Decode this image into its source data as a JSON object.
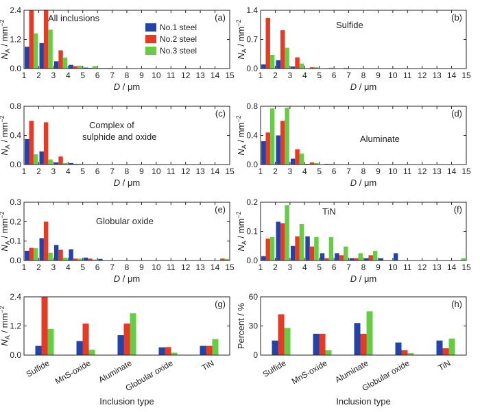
{
  "colors": {
    "No.1 steel": "#2343a8",
    "No.2 steel": "#e63a24",
    "No.3 steel": "#66cc44"
  },
  "legend": [
    "No.1 steel",
    "No.2 steel",
    "No.3 steel"
  ],
  "chart_data": [
    {
      "type": "bar",
      "panel": "(a)",
      "annotation": "All inclusions",
      "xlabel": "D / μm",
      "ylabel": "NA / mm⁻²",
      "xlim": [
        1,
        15
      ],
      "ylim": [
        0,
        2.4
      ],
      "xticks": [
        1,
        2,
        3,
        4,
        5,
        6,
        7,
        8,
        9,
        10,
        11,
        12,
        13,
        14,
        15
      ],
      "yticks": [
        0,
        1.2,
        2.4
      ],
      "x": [
        1.5,
        2.5,
        3.5,
        4.5,
        5.5,
        6.5
      ],
      "series": [
        {
          "name": "No.1 steel",
          "values": [
            0.9,
            1.05,
            0.3,
            0.15,
            0.04,
            0.02
          ]
        },
        {
          "name": "No.2 steel",
          "values": [
            2.4,
            2.42,
            0.75,
            0.1,
            0.03,
            0.02
          ]
        },
        {
          "name": "No.3 steel",
          "values": [
            1.45,
            1.6,
            0.45,
            0.12,
            0.1,
            0.03
          ]
        }
      ]
    },
    {
      "type": "bar",
      "panel": "(b)",
      "annotation": "Sulfide",
      "xlabel": "D / μm",
      "ylabel": "NA / mm⁻²",
      "xlim": [
        1,
        15
      ],
      "ylim": [
        0,
        1.4
      ],
      "xticks": [
        1,
        2,
        3,
        4,
        5,
        6,
        7,
        8,
        9,
        10,
        11,
        12,
        13,
        14,
        15
      ],
      "yticks": [
        0,
        0.7,
        1.4
      ],
      "x": [
        1.5,
        2.5,
        3.5,
        4.5,
        5.5,
        6.5
      ],
      "series": [
        {
          "name": "No.1 steel",
          "values": [
            0.1,
            0.2,
            0.05,
            0.01,
            0.0,
            0.0
          ]
        },
        {
          "name": "No.2 steel",
          "values": [
            1.22,
            0.92,
            0.27,
            0.03,
            0.01,
            0.0
          ]
        },
        {
          "name": "No.3 steel",
          "values": [
            0.33,
            0.5,
            0.12,
            0.03,
            0.02,
            0.02
          ]
        }
      ]
    },
    {
      "type": "bar",
      "panel": "(c)",
      "annotation": "Complex of sulphide and oxide",
      "xlabel": "D / μm",
      "ylabel": "NA / mm⁻²",
      "xlim": [
        1,
        15
      ],
      "ylim": [
        0,
        0.8
      ],
      "xticks": [
        1,
        2,
        3,
        4,
        5,
        6,
        7,
        8,
        9,
        10,
        11,
        12,
        13,
        14,
        15
      ],
      "yticks": [
        0,
        0.4,
        0.8
      ],
      "x": [
        1.5,
        2.5,
        3.5,
        4.5
      ],
      "series": [
        {
          "name": "No.1 steel",
          "values": [
            0.35,
            0.18,
            0.03,
            0.02
          ]
        },
        {
          "name": "No.2 steel",
          "values": [
            0.6,
            0.58,
            0.11,
            0.01
          ]
        },
        {
          "name": "No.3 steel",
          "values": [
            0.14,
            0.07,
            0.02,
            0.01
          ]
        }
      ]
    },
    {
      "type": "bar",
      "panel": "(d)",
      "annotation": "Aluminate",
      "xlabel": "D / μm",
      "ylabel": "NA / mm⁻²",
      "xlim": [
        1,
        15
      ],
      "ylim": [
        0,
        0.8
      ],
      "xticks": [
        1,
        2,
        3,
        4,
        5,
        6,
        7,
        8,
        9,
        10,
        11,
        12,
        13,
        14,
        15
      ],
      "yticks": [
        0,
        0.4,
        0.8
      ],
      "x": [
        1.5,
        2.5,
        3.5,
        4.5,
        5.5
      ],
      "series": [
        {
          "name": "No.1 steel",
          "values": [
            0.32,
            0.4,
            0.08,
            0.01,
            0.0
          ]
        },
        {
          "name": "No.2 steel",
          "values": [
            0.44,
            0.6,
            0.21,
            0.03,
            0.01
          ]
        },
        {
          "name": "No.3 steel",
          "values": [
            0.77,
            0.78,
            0.15,
            0.02,
            0.01
          ]
        }
      ]
    },
    {
      "type": "bar",
      "panel": "(e)",
      "annotation": "Globular oxide",
      "xlabel": "D / μm",
      "ylabel": "NA / mm⁻²",
      "xlim": [
        1,
        15
      ],
      "ylim": [
        0,
        0.3
      ],
      "xticks": [
        1,
        2,
        3,
        4,
        5,
        6,
        7,
        8,
        9,
        10,
        11,
        12,
        13,
        14,
        15
      ],
      "yticks": [
        0.0,
        0.1,
        0.2,
        0.3
      ],
      "x": [
        1.5,
        2.5,
        3.5,
        4.5,
        5.5,
        6.5,
        14.5
      ],
      "series": [
        {
          "name": "No.1 steel",
          "values": [
            0.05,
            0.115,
            0.08,
            0.058,
            0.015,
            0.008,
            0.0
          ]
        },
        {
          "name": "No.2 steel",
          "values": [
            0.065,
            0.2,
            0.055,
            0.01,
            0.01,
            0.0,
            0.01
          ]
        },
        {
          "name": "No.3 steel",
          "values": [
            0.063,
            0.04,
            0.015,
            0.01,
            0.005,
            0.0,
            0.008
          ]
        }
      ]
    },
    {
      "type": "bar",
      "panel": "(f)",
      "annotation": "TiN",
      "xlabel": "D / μm",
      "ylabel": "NA / mm⁻²",
      "xlim": [
        1,
        15
      ],
      "ylim": [
        0,
        0.2
      ],
      "xticks": [
        1,
        2,
        3,
        4,
        5,
        6,
        7,
        8,
        9,
        10,
        11,
        12,
        13,
        14,
        15
      ],
      "yticks": [
        0.0,
        0.1,
        0.2
      ],
      "x": [
        1.5,
        2.5,
        3.5,
        4.5,
        5.5,
        6.5,
        7.5,
        8.5,
        9.5,
        10.5,
        11.5,
        12.5,
        13.5,
        14.5
      ],
      "series": [
        {
          "name": "No.1 steel",
          "values": [
            0.015,
            0.133,
            0.05,
            0.083,
            0.025,
            0.025,
            0.008,
            0.008,
            0.008,
            0.025,
            0.0,
            0.0,
            0.0,
            0.0
          ]
        },
        {
          "name": "No.2 steel",
          "values": [
            0.075,
            0.128,
            0.083,
            0.048,
            0.008,
            0.018,
            0.008,
            0.018,
            0.0,
            0.0,
            0.0,
            0.0,
            0.0,
            0.0
          ]
        },
        {
          "name": "No.3 steel",
          "values": [
            0.08,
            0.19,
            0.125,
            0.08,
            0.08,
            0.048,
            0.025,
            0.033,
            0.0,
            0.0,
            0.0,
            0.0,
            0.0,
            0.008
          ]
        }
      ]
    },
    {
      "type": "bar",
      "panel": "(g)",
      "xlabel": "Inclusion type",
      "ylabel": "NA / mm⁻²",
      "ylim": [
        0,
        2.4
      ],
      "yticks": [
        0,
        1.2,
        2.4
      ],
      "categories": [
        "Sulfide",
        "MnS-oxide",
        "Aluminate",
        "Globular oxide",
        "TiN"
      ],
      "series": [
        {
          "name": "No.1 steel",
          "values": [
            0.38,
            0.58,
            0.82,
            0.32,
            0.38
          ]
        },
        {
          "name": "No.2 steel",
          "values": [
            2.4,
            1.3,
            1.3,
            0.33,
            0.38
          ]
        },
        {
          "name": "No.3 steel",
          "values": [
            1.08,
            0.22,
            1.72,
            0.1,
            0.66
          ]
        }
      ]
    },
    {
      "type": "bar",
      "panel": "(h)",
      "xlabel": "Inclusion type",
      "ylabel": "Percent / %",
      "ylim": [
        0,
        60
      ],
      "yticks": [
        0,
        30,
        60
      ],
      "categories": [
        "Sulfide",
        "MnS-oxide",
        "Aluminate",
        "Globular oxide",
        "TiN"
      ],
      "series": [
        {
          "name": "No.1 steel",
          "values": [
            15,
            22,
            33,
            13,
            15
          ]
        },
        {
          "name": "No.2 steel",
          "values": [
            42,
            22,
            22,
            5,
            7
          ]
        },
        {
          "name": "No.3 steel",
          "values": [
            28,
            5,
            45,
            2,
            17
          ]
        }
      ]
    }
  ]
}
